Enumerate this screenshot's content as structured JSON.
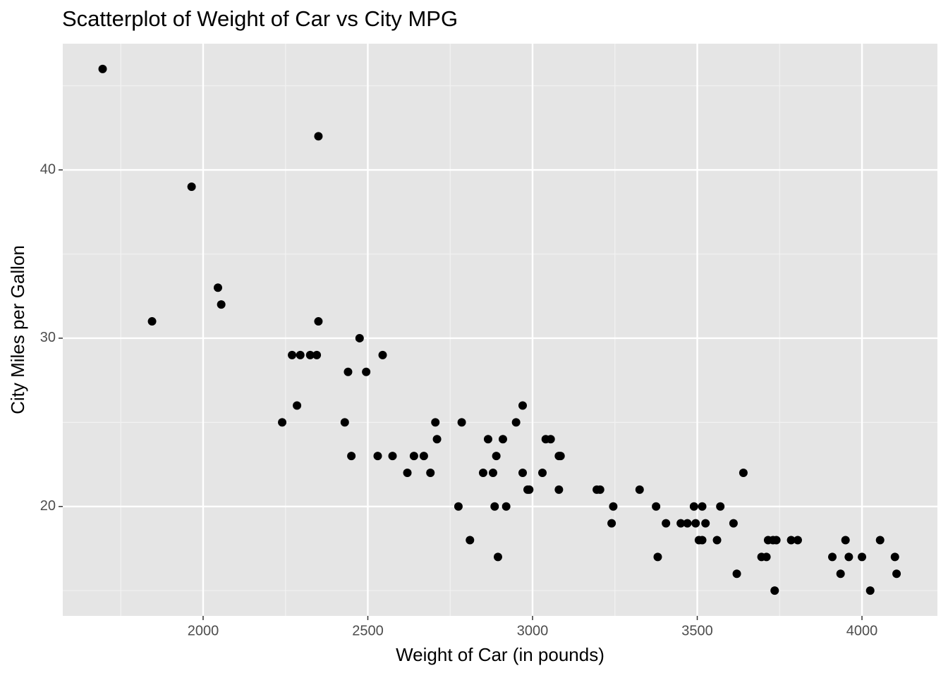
{
  "chart_data": {
    "type": "scatter",
    "title": "Scatterplot of Weight of Car vs City MPG",
    "xlabel": "Weight of Car (in pounds)",
    "ylabel": "City Miles per Gallon",
    "color": "#000000",
    "grid": true,
    "xlim": [
      1574,
      4229
    ],
    "ylim": [
      13.5,
      47.5
    ],
    "xticks": [
      2000,
      2500,
      3000,
      3500,
      4000
    ],
    "yticks": [
      20,
      30,
      40
    ],
    "x": [
      1695,
      1845,
      1965,
      2045,
      2055,
      2240,
      2270,
      2285,
      2295,
      2325,
      2345,
      2350,
      2350,
      2440,
      2450,
      2475,
      2495,
      2430,
      2530,
      2545,
      2575,
      2620,
      2640,
      2670,
      2690,
      2705,
      2710,
      2775,
      2785,
      2810,
      2850,
      2865,
      2880,
      2885,
      2890,
      2895,
      2910,
      2920,
      2950,
      2970,
      2970,
      2985,
      2990,
      3030,
      3040,
      3055,
      3080,
      3085,
      3080,
      3195,
      3205,
      3245,
      3240,
      3325,
      3375,
      3380,
      3405,
      3450,
      3470,
      3490,
      3495,
      3505,
      3515,
      3515,
      3525,
      3560,
      3570,
      3610,
      3620,
      3640,
      3695,
      3710,
      3715,
      3730,
      3740,
      3735,
      3785,
      3805,
      3910,
      3935,
      3950,
      3960,
      4000,
      4025,
      4055,
      4100,
      4105
    ],
    "values": [
      46,
      31,
      39,
      33,
      32,
      25,
      29,
      26,
      29,
      29,
      29,
      31,
      42,
      28,
      23,
      30,
      28,
      25,
      23,
      29,
      23,
      22,
      23,
      23,
      22,
      25,
      24,
      20,
      25,
      18,
      22,
      24,
      22,
      20,
      23,
      17,
      24,
      20,
      25,
      26,
      22,
      21,
      21,
      22,
      24,
      24,
      23,
      23,
      21,
      21,
      21,
      20,
      19,
      21,
      20,
      17,
      19,
      19,
      19,
      20,
      19,
      18,
      20,
      18,
      19,
      18,
      20,
      19,
      16,
      22,
      17,
      17,
      18,
      18,
      18,
      15,
      18,
      18,
      17,
      16,
      18,
      17,
      17,
      15,
      18,
      17,
      16
    ]
  }
}
